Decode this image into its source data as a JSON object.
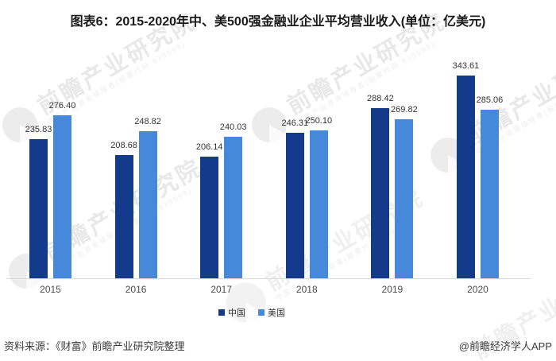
{
  "title": "图表6：2015-2020年中、美500强金融业企业平均营业收入(单位：亿美元)",
  "chart_data": {
    "type": "bar",
    "categories": [
      "2015",
      "2016",
      "2017",
      "2018",
      "2019",
      "2020"
    ],
    "series": [
      {
        "name": "中国",
        "color": "#143a8c",
        "values": [
          235.83,
          208.68,
          206.14,
          246.31,
          288.42,
          343.61
        ]
      },
      {
        "name": "美国",
        "color": "#4688da",
        "values": [
          276.4,
          248.82,
          240.03,
          250.1,
          269.82,
          285.06
        ]
      }
    ],
    "title": "图表6：2015-2020年中、美500强金融业企业平均营业收入(单位：亿美元)",
    "xlabel": "",
    "ylabel": "",
    "unit": "亿美元",
    "ylim": [
      0,
      380
    ],
    "grid": false,
    "legend_position": "bottom",
    "value_label_decimals": 2
  },
  "legend": {
    "items": [
      "中国",
      "美国"
    ]
  },
  "footer": {
    "source": "资料来源：《财富》前瞻产业研究院整理",
    "credit": "@前瞻经济学人APP"
  },
  "watermark": {
    "text": "前瞻产业研究院",
    "subtext": "中国产业咨询领导者(股票代码:839599)"
  }
}
